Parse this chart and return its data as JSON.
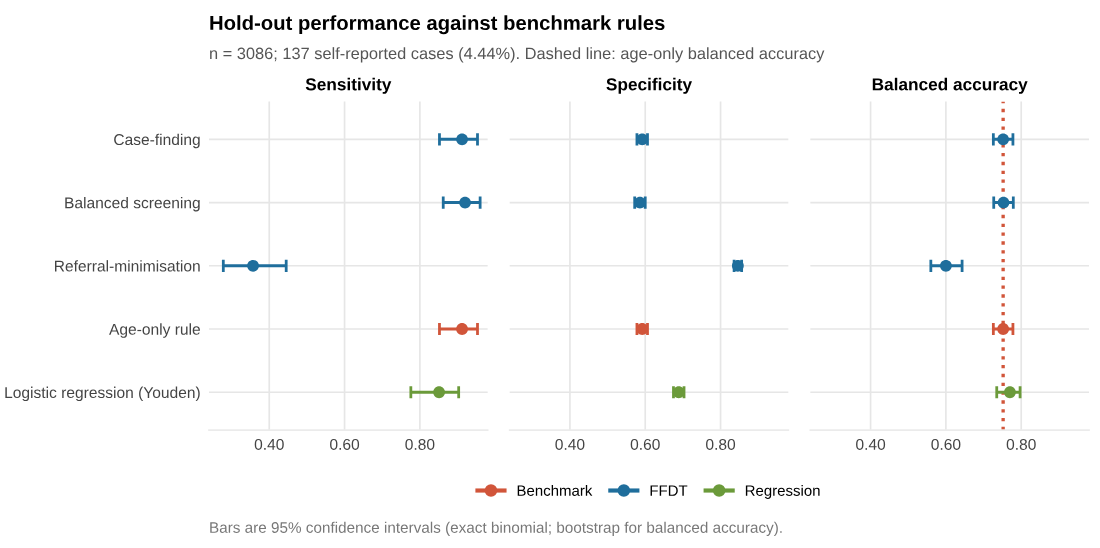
{
  "chart_data": [
    {
      "type": "other",
      "title": "Hold-out performance against benchmark rules",
      "subtitle": "n = 3086; 137 self-reported cases (4.44%). Dashed line: age-only balanced accuracy",
      "annotations": [
        "Bars are 95% confidence intervals (exact binomial; bootstrap for balanced accuracy)."
      ]
    },
    {
      "type": "scatter",
      "orientation": "horizontal",
      "title": "Sensitivity",
      "categories": [
        "Case-finding",
        "Balanced screening",
        "Referral-minimisation",
        "Age-only rule",
        "Logistic regression (Youden)"
      ],
      "xlim": [
        0.24,
        0.98
      ],
      "xticks": [
        {
          "value": 0.4,
          "label": "0.40"
        },
        {
          "value": 0.6,
          "label": "0.60"
        },
        {
          "value": 0.8,
          "label": "0.80"
        }
      ],
      "grid": true,
      "marker": "circle",
      "legend": "bottom",
      "series": [
        {
          "name": "Benchmark",
          "color": "#d1553a",
          "values": [
            null,
            null,
            null,
            0.912,
            null
          ],
          "errors": [
            null,
            null,
            null,
            [
              0.852,
              0.953
            ],
            null
          ]
        },
        {
          "name": "FFDT",
          "color": "#1f6e9c",
          "values": [
            0.912,
            0.92,
            0.357,
            null,
            null
          ],
          "errors": [
            [
              0.852,
              0.953
            ],
            [
              0.862,
              0.96
            ],
            [
              0.278,
              0.445
            ],
            null,
            null
          ]
        },
        {
          "name": "Regression",
          "color": "#6b9a3a",
          "values": [
            null,
            null,
            null,
            null,
            0.851
          ],
          "errors": [
            null,
            null,
            null,
            null,
            [
              0.776,
              0.903
            ]
          ]
        }
      ]
    },
    {
      "type": "scatter",
      "orientation": "horizontal",
      "title": "Specificity",
      "categories": [
        null,
        null,
        null,
        null,
        null
      ],
      "xlim": [
        0.24,
        0.98
      ],
      "xticks": [
        {
          "value": 0.4,
          "label": "0.40"
        },
        {
          "value": 0.6,
          "label": "0.60"
        },
        {
          "value": 0.8,
          "label": "0.80"
        }
      ],
      "grid": true,
      "marker": "circle",
      "tick_labels": "x",
      "series": [
        {
          "name": "Benchmark",
          "color": "#d1553a",
          "values": [
            null,
            null,
            null,
            0.592,
            null
          ],
          "errors": [
            null,
            null,
            null,
            [
              0.578,
              0.606
            ],
            null
          ]
        },
        {
          "name": "FFDT",
          "color": "#1f6e9c",
          "values": [
            0.592,
            0.586,
            0.846,
            null,
            null
          ],
          "errors": [
            [
              0.578,
              0.606
            ],
            [
              0.572,
              0.6
            ],
            [
              0.836,
              0.856
            ],
            null,
            null
          ]
        },
        {
          "name": "Regression",
          "color": "#6b9a3a",
          "values": [
            null,
            null,
            null,
            null,
            0.689
          ],
          "errors": [
            null,
            null,
            null,
            null,
            [
              0.675,
              0.703
            ]
          ]
        }
      ]
    },
    {
      "type": "scatter",
      "orientation": "horizontal",
      "title": "Balanced accuracy",
      "categories": [
        null,
        null,
        null,
        null,
        null
      ],
      "xlim": [
        0.24,
        0.98
      ],
      "xticks": [
        {
          "value": 0.4,
          "label": "0.40"
        },
        {
          "value": 0.6,
          "label": "0.60"
        },
        {
          "value": 0.8,
          "label": "0.80"
        }
      ],
      "grid": true,
      "marker": "circle",
      "tick_labels": "x",
      "ref_lines": [
        {
          "axis": "x",
          "value": 0.752,
          "color": "#d1553a",
          "line_style": "dotted"
        }
      ],
      "series": [
        {
          "name": "Benchmark",
          "color": "#d1553a",
          "values": [
            null,
            null,
            null,
            0.752,
            null
          ],
          "errors": [
            null,
            null,
            null,
            [
              0.726,
              0.778
            ],
            null
          ]
        },
        {
          "name": "FFDT",
          "color": "#1f6e9c",
          "values": [
            0.752,
            0.753,
            0.6,
            null,
            null
          ],
          "errors": [
            [
              0.726,
              0.778
            ],
            [
              0.727,
              0.779
            ],
            [
              0.56,
              0.643
            ],
            null,
            null
          ]
        },
        {
          "name": "Regression",
          "color": "#6b9a3a",
          "values": [
            null,
            null,
            null,
            null,
            0.77
          ],
          "errors": [
            null,
            null,
            null,
            null,
            [
              0.735,
              0.797
            ]
          ]
        }
      ]
    }
  ]
}
